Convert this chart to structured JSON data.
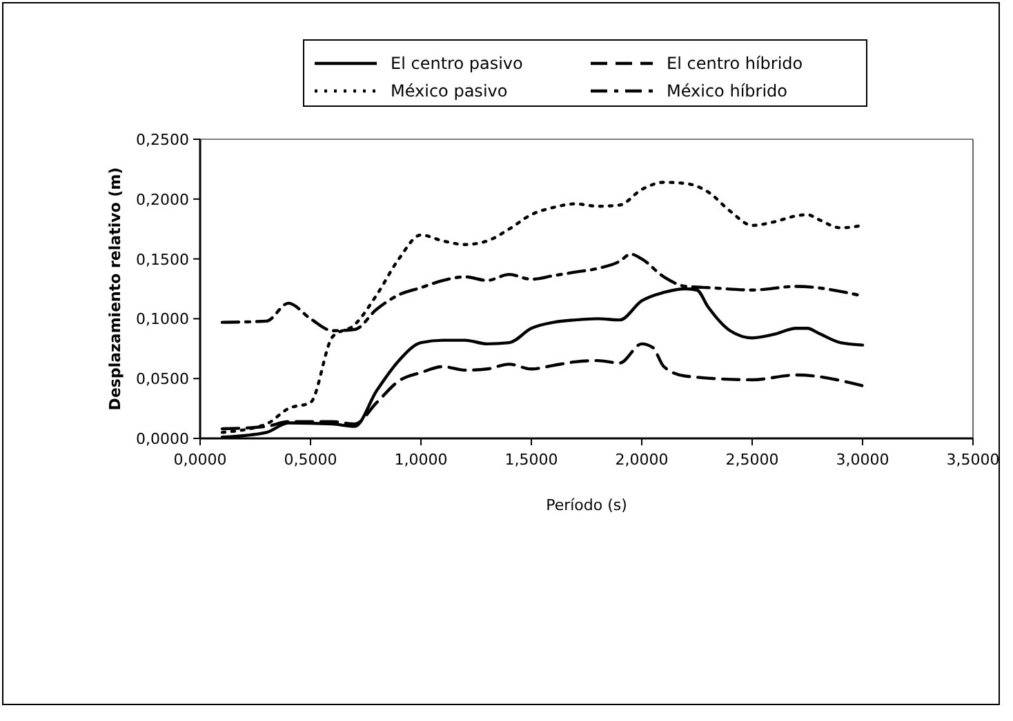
{
  "chart_data": {
    "type": "line",
    "xlabel": "Período (s)",
    "ylabel": "Desplazamiento relativo (m)",
    "legend": "top",
    "grid": false,
    "xlim": [
      0,
      3.5
    ],
    "xticks": [
      {
        "value": 0,
        "label": "0,0000"
      },
      {
        "value": 0.5,
        "label": "0,5000"
      },
      {
        "value": 1,
        "label": "1,0000"
      },
      {
        "value": 1.5,
        "label": "1,5000"
      },
      {
        "value": 2,
        "label": "2,0000"
      },
      {
        "value": 2.5,
        "label": "2,5000"
      },
      {
        "value": 3,
        "label": "3,0000"
      },
      {
        "value": 3.5,
        "label": "3,5000"
      }
    ],
    "ylim": [
      0,
      0.25
    ],
    "yticks": [
      {
        "value": 0,
        "label": "0,0000"
      },
      {
        "value": 0.05,
        "label": "0,0500"
      },
      {
        "value": 0.1,
        "label": "0,1000"
      },
      {
        "value": 0.15,
        "label": "0,1500"
      },
      {
        "value": 0.2,
        "label": "0,2000"
      },
      {
        "value": 0.25,
        "label": "0,2500"
      }
    ],
    "series": [
      {
        "name": "El centro pasivo",
        "color": "#000000",
        "line_style": "solid",
        "x": [
          0.1,
          0.3,
          0.4,
          0.6,
          0.7,
          0.8,
          0.9,
          1.0,
          1.1,
          1.2,
          1.3,
          1.4,
          1.5,
          1.6,
          1.7,
          1.8,
          1.9,
          2.0,
          2.1,
          2.2,
          2.25,
          2.3,
          2.4,
          2.5,
          2.6,
          2.7,
          2.75,
          2.8,
          2.9,
          3.0
        ],
        "values": [
          0.001,
          0.005,
          0.013,
          0.012,
          0.01,
          0.04,
          0.065,
          0.08,
          0.082,
          0.082,
          0.079,
          0.08,
          0.092,
          0.097,
          0.099,
          0.1,
          0.099,
          0.115,
          0.122,
          0.125,
          0.124,
          0.11,
          0.09,
          0.084,
          0.087,
          0.092,
          0.092,
          0.088,
          0.08,
          0.078
        ]
      },
      {
        "name": "El centro híbrido",
        "color": "#000000",
        "line_style": "longdash",
        "x": [
          0.1,
          0.3,
          0.4,
          0.6,
          0.7,
          0.8,
          0.9,
          1.0,
          1.1,
          1.2,
          1.3,
          1.4,
          1.5,
          1.6,
          1.7,
          1.8,
          1.9,
          2.0,
          2.05,
          2.1,
          2.2,
          2.5,
          2.7,
          3.0
        ],
        "values": [
          0.008,
          0.01,
          0.014,
          0.014,
          0.012,
          0.03,
          0.048,
          0.055,
          0.06,
          0.057,
          0.058,
          0.062,
          0.058,
          0.061,
          0.064,
          0.065,
          0.063,
          0.079,
          0.076,
          0.06,
          0.052,
          0.049,
          0.053,
          0.044
        ]
      },
      {
        "name": "México pasivo",
        "color": "#000000",
        "line_style": "dotted",
        "x": [
          0.1,
          0.3,
          0.4,
          0.5,
          0.6,
          0.7,
          0.8,
          0.9,
          1.0,
          1.1,
          1.2,
          1.3,
          1.4,
          1.5,
          1.6,
          1.7,
          1.8,
          1.9,
          2.0,
          2.1,
          2.2,
          2.3,
          2.4,
          2.5,
          2.6,
          2.7,
          2.75,
          2.8,
          2.9,
          3.0
        ],
        "values": [
          0.005,
          0.012,
          0.025,
          0.03,
          0.085,
          0.095,
          0.12,
          0.15,
          0.17,
          0.165,
          0.162,
          0.165,
          0.175,
          0.187,
          0.193,
          0.196,
          0.194,
          0.195,
          0.208,
          0.214,
          0.213,
          0.206,
          0.19,
          0.178,
          0.181,
          0.186,
          0.187,
          0.183,
          0.176,
          0.178
        ]
      },
      {
        "name": "México híbrido",
        "color": "#000000",
        "line_style": "dashdot",
        "x": [
          0.1,
          0.3,
          0.4,
          0.5,
          0.6,
          0.7,
          0.8,
          0.9,
          1.0,
          1.1,
          1.2,
          1.3,
          1.4,
          1.5,
          1.6,
          1.7,
          1.8,
          1.9,
          1.95,
          2.0,
          2.1,
          2.2,
          2.3,
          2.5,
          2.7,
          3.0
        ],
        "values": [
          0.097,
          0.098,
          0.113,
          0.1,
          0.09,
          0.091,
          0.108,
          0.12,
          0.126,
          0.132,
          0.135,
          0.132,
          0.137,
          0.133,
          0.136,
          0.139,
          0.142,
          0.148,
          0.154,
          0.15,
          0.135,
          0.127,
          0.126,
          0.124,
          0.127,
          0.119
        ]
      }
    ]
  }
}
